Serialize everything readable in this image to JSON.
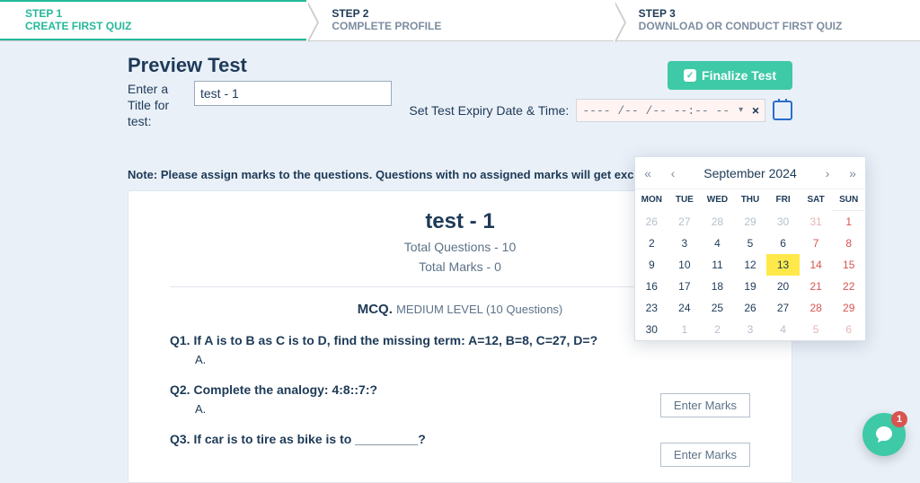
{
  "steps": [
    {
      "label": "STEP 1",
      "sub": "CREATE FIRST QUIZ",
      "active": true
    },
    {
      "label": "STEP 2",
      "sub": "COMPLETE PROFILE",
      "active": false
    },
    {
      "label": "STEP 3",
      "sub": "DOWNLOAD OR CONDUCT FIRST QUIZ",
      "active": false
    }
  ],
  "page": {
    "heading": "Preview Test",
    "title_label": "Enter a Title for test:",
    "title_value": "test - 1",
    "finalize_label": "Finalize Test",
    "expiry_label": "Set Test Expiry Date & Time:",
    "expiry_value": "---- /-- /-- --:-- --",
    "note": "Note: Please assign marks to the questions. Questions with no assigned marks will get excluded!"
  },
  "test": {
    "name": "test - 1",
    "total_q_label": "Total Questions - 10",
    "total_m_label": "Total Marks - 0",
    "section_prefix": "MCQ.",
    "section_level": "MEDIUM LEVEL (10 Questions)",
    "enter_marks_label": "Enter Marks",
    "questions": [
      {
        "q": "Q1. If A is to B as C is to D, find the missing term: A=12, B=8, C=27, D=?",
        "opt": "A."
      },
      {
        "q": "Q2. Complete the analogy: 4:8::7:?",
        "opt": "A."
      },
      {
        "q": "Q3. If car is to tire as bike is to _________?",
        "opt": ""
      }
    ]
  },
  "calendar": {
    "month_label": "September 2024",
    "dow": [
      "MON",
      "TUE",
      "WED",
      "THU",
      "FRI",
      "SAT",
      "SUN"
    ],
    "nav": {
      "first": "«",
      "prev": "‹",
      "next": "›",
      "last": "»"
    },
    "today": 13,
    "rows": [
      [
        {
          "n": 26,
          "out": true
        },
        {
          "n": 27,
          "out": true
        },
        {
          "n": 28,
          "out": true
        },
        {
          "n": 29,
          "out": true
        },
        {
          "n": 30,
          "out": true
        },
        {
          "n": 31,
          "out": true,
          "wk": true
        },
        {
          "n": 1,
          "wk": true
        }
      ],
      [
        {
          "n": 2
        },
        {
          "n": 3
        },
        {
          "n": 4
        },
        {
          "n": 5
        },
        {
          "n": 6
        },
        {
          "n": 7,
          "wk": true
        },
        {
          "n": 8,
          "wk": true
        }
      ],
      [
        {
          "n": 9
        },
        {
          "n": 10
        },
        {
          "n": 11
        },
        {
          "n": 12
        },
        {
          "n": 13
        },
        {
          "n": 14,
          "wk": true
        },
        {
          "n": 15,
          "wk": true
        }
      ],
      [
        {
          "n": 16
        },
        {
          "n": 17
        },
        {
          "n": 18
        },
        {
          "n": 19
        },
        {
          "n": 20
        },
        {
          "n": 21,
          "wk": true
        },
        {
          "n": 22,
          "wk": true
        }
      ],
      [
        {
          "n": 23
        },
        {
          "n": 24
        },
        {
          "n": 25
        },
        {
          "n": 26
        },
        {
          "n": 27
        },
        {
          "n": 28,
          "wk": true
        },
        {
          "n": 29,
          "wk": true
        }
      ],
      [
        {
          "n": 30
        },
        {
          "n": 1,
          "out": true
        },
        {
          "n": 2,
          "out": true
        },
        {
          "n": 3,
          "out": true
        },
        {
          "n": 4,
          "out": true
        },
        {
          "n": 5,
          "out": true,
          "wk": true
        },
        {
          "n": 6,
          "out": true,
          "wk": true
        }
      ]
    ]
  },
  "chat": {
    "badge": "1"
  },
  "colors": {
    "accent": "#3ec9a7",
    "step_active": "#25b99a",
    "text": "#1d3a57",
    "muted": "#5d7288",
    "weekend": "#d9534f",
    "today_bg": "#ffe94a",
    "page_bg": "#eaf0f8"
  }
}
